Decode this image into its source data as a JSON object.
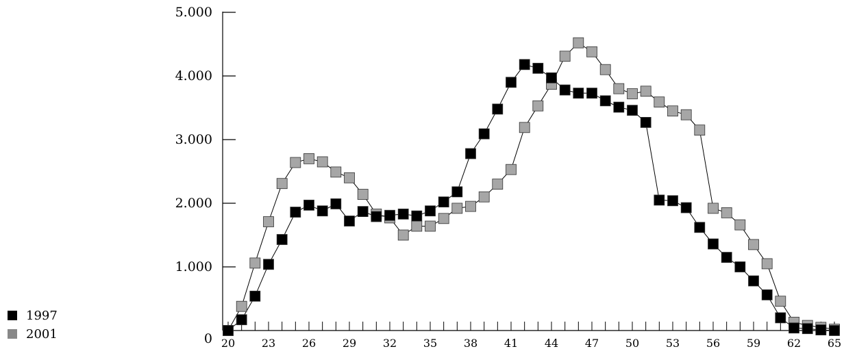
{
  "chart_data": {
    "type": "line",
    "x": [
      20,
      21,
      22,
      23,
      24,
      25,
      26,
      27,
      28,
      29,
      30,
      31,
      32,
      33,
      34,
      35,
      36,
      37,
      38,
      39,
      40,
      41,
      42,
      43,
      44,
      45,
      46,
      47,
      48,
      49,
      50,
      51,
      52,
      53,
      54,
      55,
      56,
      57,
      58,
      59,
      60,
      61,
      62,
      63,
      64,
      65
    ],
    "x_tick_labels": [
      "20",
      "23",
      "26",
      "29",
      "32",
      "35",
      "38",
      "41",
      "44",
      "47",
      "50",
      "53",
      "56",
      "59",
      "62",
      "65"
    ],
    "y_tick_labels": [
      "0",
      "1.000",
      "2.000",
      "3.000",
      "4.000",
      "5.000"
    ],
    "y_ticks": [
      0,
      1000,
      2000,
      3000,
      4000,
      5000
    ],
    "ylim": [
      0,
      5000
    ],
    "xlim": [
      20,
      65
    ],
    "grid": false,
    "legend_position": "bottom-left",
    "series": [
      {
        "name": "1997",
        "color": "#000000",
        "values": [
          0,
          170,
          540,
          1040,
          1430,
          1860,
          1970,
          1880,
          1990,
          1720,
          1870,
          1790,
          1810,
          1830,
          1800,
          1880,
          2020,
          2180,
          2780,
          3090,
          3480,
          3900,
          4180,
          4120,
          3970,
          3780,
          3730,
          3730,
          3610,
          3510,
          3460,
          3270,
          2050,
          2040,
          1930,
          1620,
          1360,
          1150,
          1000,
          780,
          560,
          200,
          40,
          30,
          10,
          0
        ]
      },
      {
        "name": "2001",
        "color": "#a6a6a6",
        "values": [
          0,
          380,
          1060,
          1710,
          2310,
          2640,
          2700,
          2650,
          2490,
          2400,
          2140,
          1830,
          1770,
          1500,
          1640,
          1640,
          1760,
          1920,
          1950,
          2100,
          2300,
          2530,
          3190,
          3530,
          3870,
          4310,
          4520,
          4380,
          4100,
          3800,
          3720,
          3760,
          3590,
          3450,
          3390,
          3150,
          1920,
          1850,
          1660,
          1350,
          1050,
          460,
          130,
          80,
          50,
          20
        ]
      }
    ]
  }
}
